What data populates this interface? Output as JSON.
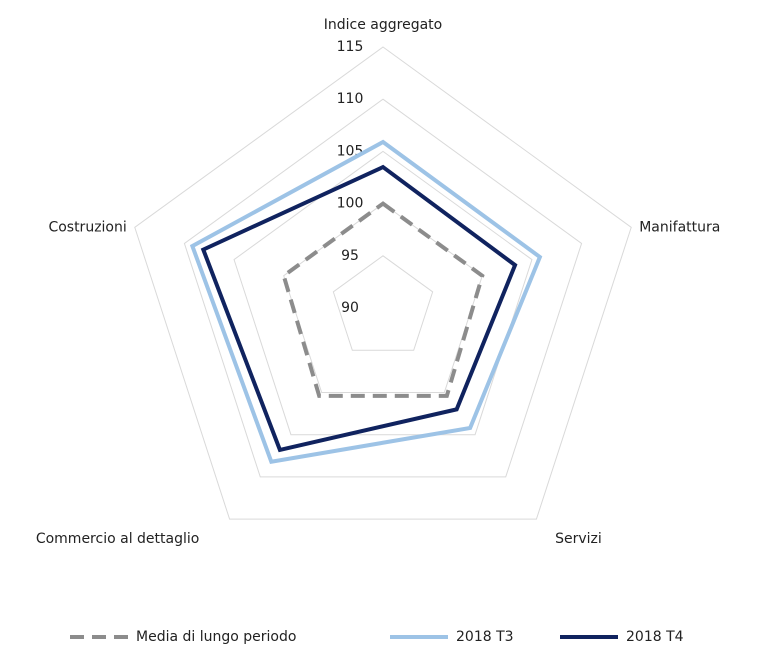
{
  "chart_data": {
    "type": "radar",
    "categories": [
      "Indice aggregato",
      "Manifattura",
      "Servizi",
      "Commercio al dettaglio",
      "Costruzioni"
    ],
    "ylim": [
      90,
      115
    ],
    "yticks": [
      90,
      95,
      100,
      105,
      110,
      115
    ],
    "grid": true,
    "legend": "bottom",
    "series": [
      {
        "name": "Media di lungo periodo",
        "color": "#8c8c8c",
        "dash": true,
        "values": [
          100,
          100,
          100.4,
          100.4,
          100
        ]
      },
      {
        "name": "2018 T3",
        "color": "#9dc3e6",
        "dash": false,
        "values": [
          105.9,
          105.8,
          104.2,
          108.2,
          109.2
        ]
      },
      {
        "name": "2018 T4",
        "color": "#10235f",
        "dash": false,
        "values": [
          103.5,
          103.3,
          102,
          106.8,
          108.1
        ]
      }
    ]
  }
}
